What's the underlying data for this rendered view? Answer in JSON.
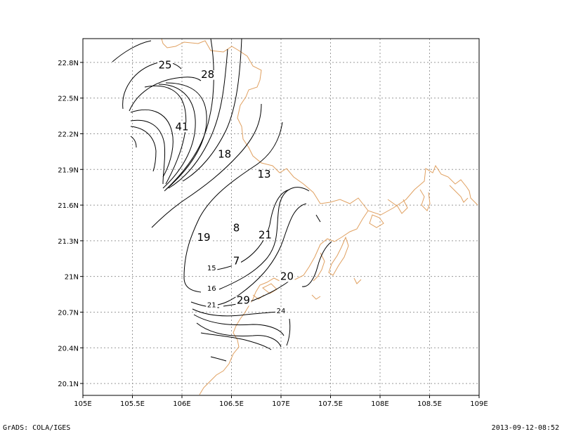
{
  "map": {
    "lon_range": [
      105,
      109
    ],
    "lat_range": [
      20.0,
      23.0
    ],
    "x_ticks": [
      {
        "lon": 105.0,
        "label": "105E"
      },
      {
        "lon": 105.5,
        "label": "105.5E"
      },
      {
        "lon": 106.0,
        "label": "106E"
      },
      {
        "lon": 106.5,
        "label": "106.5E"
      },
      {
        "lon": 107.0,
        "label": "107E"
      },
      {
        "lon": 107.5,
        "label": "107.5E"
      },
      {
        "lon": 108.0,
        "label": "108E"
      },
      {
        "lon": 108.5,
        "label": "108.5E"
      },
      {
        "lon": 109.0,
        "label": "109E"
      }
    ],
    "y_ticks": [
      {
        "lat": 20.1,
        "label": "20.1N"
      },
      {
        "lat": 20.4,
        "label": "20.4N"
      },
      {
        "lat": 20.7,
        "label": "20.7N"
      },
      {
        "lat": 21.0,
        "label": "21N"
      },
      {
        "lat": 21.3,
        "label": "21.3N"
      },
      {
        "lat": 21.6,
        "label": "21.6N"
      },
      {
        "lat": 21.9,
        "label": "21.9N"
      },
      {
        "lat": 22.2,
        "label": "22.2N"
      },
      {
        "lat": 22.5,
        "label": "22.5N"
      },
      {
        "lat": 22.8,
        "label": "22.8N"
      }
    ],
    "coast_color": "#e0a060",
    "contour_color": "#000000",
    "grid": true,
    "contour_labels": [
      {
        "text": "25",
        "lon": 105.83,
        "lat": 22.75,
        "size": "large"
      },
      {
        "text": "28",
        "lon": 106.26,
        "lat": 22.67,
        "size": "large"
      },
      {
        "text": "41",
        "lon": 106.0,
        "lat": 22.23,
        "size": "large"
      },
      {
        "text": "18",
        "lon": 106.43,
        "lat": 22.0,
        "size": "large"
      },
      {
        "text": "13",
        "lon": 106.83,
        "lat": 21.83,
        "size": "large"
      },
      {
        "text": "8",
        "lon": 106.55,
        "lat": 21.38,
        "size": "large"
      },
      {
        "text": "21",
        "lon": 106.84,
        "lat": 21.32,
        "size": "large"
      },
      {
        "text": "19",
        "lon": 106.22,
        "lat": 21.3,
        "size": "large"
      },
      {
        "text": "7",
        "lon": 106.55,
        "lat": 21.1,
        "size": "large"
      },
      {
        "text": "15",
        "lon": 106.3,
        "lat": 21.05,
        "size": "small"
      },
      {
        "text": "20",
        "lon": 107.06,
        "lat": 20.97,
        "size": "large"
      },
      {
        "text": "16",
        "lon": 106.3,
        "lat": 20.88,
        "size": "small"
      },
      {
        "text": "29",
        "lon": 106.62,
        "lat": 20.77,
        "size": "large"
      },
      {
        "text": "21",
        "lon": 106.3,
        "lat": 20.74,
        "size": "small"
      },
      {
        "text": "24",
        "lon": 107.0,
        "lat": 20.69,
        "size": "small"
      }
    ]
  },
  "footer": {
    "left": "GrADS: COLA/IGES",
    "right": "2013-09-12-08:52"
  }
}
